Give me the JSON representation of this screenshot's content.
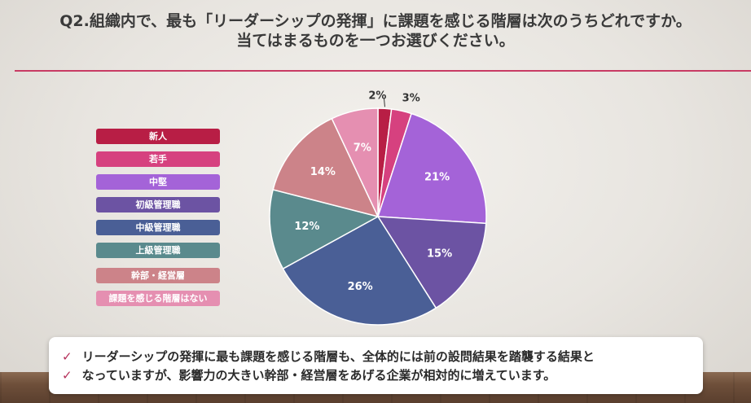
{
  "title": {
    "line1": "Q2.組織内で、最も「リーダーシップの発揮」に課題を感じる階層は次のうちどれですか。",
    "line2": "当てはまるものを一つお選びください。"
  },
  "colors": {
    "accent": "#c83b64"
  },
  "chart_data": {
    "type": "pie",
    "categories": [
      "新人",
      "若手",
      "中堅",
      "初級管理職",
      "中級管理職",
      "上級管理職",
      "幹部・経営層",
      "課題を感じる階層はない"
    ],
    "values": [
      2,
      3,
      21,
      15,
      26,
      12,
      14,
      7
    ],
    "data_labels": [
      "2%",
      "3%",
      "21%",
      "15%",
      "26%",
      "12%",
      "14%",
      "7%"
    ],
    "colors": [
      "#b81e45",
      "#d6417f",
      "#a463d8",
      "#6c53a3",
      "#4a5f96",
      "#5a8a8d",
      "#cc8389",
      "#e58fb1"
    ],
    "legend_position": "left"
  },
  "notes": {
    "check_icon": "✓",
    "line1": "リーダーシップの発揮に最も課題を感じる階層も、全体的には前の設問結果を踏襲する結果と",
    "line2": "なっていますが、影響力の大きい幹部・経営層をあげる企業が相対的に増えています。"
  }
}
